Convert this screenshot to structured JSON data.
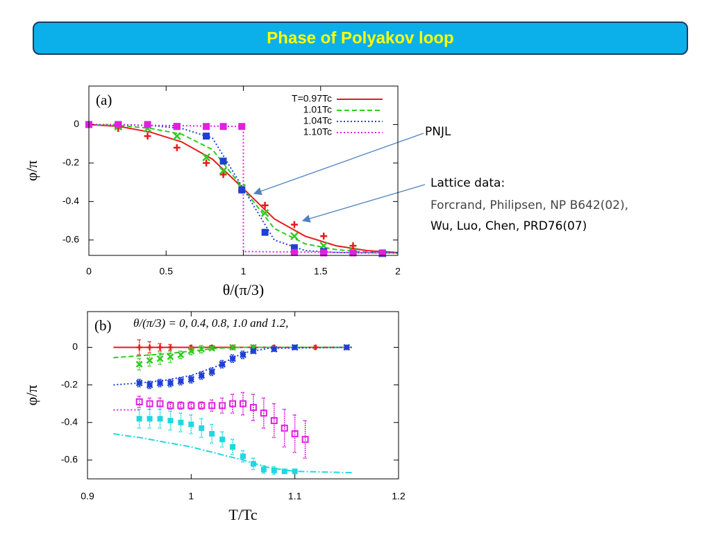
{
  "title": "Phase of Polyakov loop",
  "annotations": {
    "pnjl": "PNJL",
    "lattice": "Lattice data:",
    "ref1": "Forcrand, Philipsen, NP B642(02),",
    "ref2": "Wu, Luo, Chen, PRD76(07)"
  },
  "chart_data": [
    {
      "type": "line",
      "panel": "(a)",
      "x_label": "θ/(π/3)",
      "y_label": "φ/π",
      "xlim": [
        0,
        2
      ],
      "ylim": [
        -0.68,
        0.2
      ],
      "xticks": [
        0,
        0.5,
        1,
        1.5,
        2
      ],
      "yticks": [
        0,
        -0.2,
        -0.4,
        -0.6
      ],
      "legend": "upper right",
      "series": [
        {
          "name": "T=0.97Tc",
          "color": "#e8191c",
          "dash": "solid",
          "x": [
            0,
            0.2,
            0.4,
            0.6,
            0.8,
            1.0,
            1.2,
            1.4,
            1.6,
            1.8,
            2.0
          ],
          "values": [
            0,
            -0.01,
            -0.04,
            -0.09,
            -0.18,
            -0.333,
            -0.49,
            -0.58,
            -0.63,
            -0.655,
            -0.665
          ]
        },
        {
          "name": "1.01Tc",
          "color": "#2ecc1e",
          "dash": "dashed",
          "x": [
            0,
            0.2,
            0.4,
            0.6,
            0.8,
            1.0,
            1.2,
            1.4,
            1.6,
            1.8,
            2.0
          ],
          "values": [
            0,
            -0.005,
            -0.02,
            -0.05,
            -0.13,
            -0.333,
            -0.54,
            -0.62,
            -0.65,
            -0.663,
            -0.667
          ]
        },
        {
          "name": "1.04Tc",
          "color": "#1f3fd6",
          "dash": "dotted",
          "x": [
            0,
            0.2,
            0.4,
            0.6,
            0.8,
            1.0,
            1.2,
            1.4,
            1.6,
            1.8,
            2.0
          ],
          "values": [
            0,
            0,
            -0.005,
            -0.02,
            -0.07,
            -0.333,
            -0.6,
            -0.655,
            -0.665,
            -0.667,
            -0.667
          ]
        },
        {
          "name": "1.10Tc",
          "color": "#e020e0",
          "dash": "dotted",
          "x": [
            0,
            1,
            1,
            2
          ],
          "values": [
            0,
            -0.01,
            -0.66,
            -0.667
          ]
        },
        {
          "color": "#e8191c",
          "marker": "plus",
          "x": [
            0.19,
            0.38,
            0.57,
            0.76,
            0.87,
            0.99,
            1.14,
            1.33,
            1.52,
            1.71,
            1.9
          ],
          "values": [
            -0.02,
            -0.06,
            -0.12,
            -0.2,
            -0.26,
            -0.34,
            -0.42,
            -0.52,
            -0.58,
            -0.63,
            -0.67
          ]
        },
        {
          "color": "#2ecc1e",
          "marker": "x",
          "x": [
            0.19,
            0.38,
            0.57,
            0.76,
            0.87,
            0.99,
            1.14,
            1.33,
            1.52,
            1.71,
            1.9
          ],
          "values": [
            -0.01,
            -0.02,
            -0.06,
            -0.17,
            -0.24,
            -0.33,
            -0.46,
            -0.58,
            -0.63,
            -0.66,
            -0.67
          ]
        },
        {
          "color": "#1f3fd6",
          "marker": "square",
          "x": [
            0,
            0.19,
            0.38,
            0.57,
            0.76,
            0.87,
            0.99,
            1.14,
            1.33,
            1.52,
            1.9
          ],
          "values": [
            0,
            0,
            0,
            -0.01,
            -0.06,
            -0.19,
            -0.34,
            -0.56,
            -0.64,
            -0.66,
            -0.67
          ]
        },
        {
          "color": "#e020e0",
          "marker": "square",
          "x": [
            0,
            0.19,
            0.38,
            0.57,
            0.76,
            0.87,
            0.99,
            1.33,
            1.52,
            1.71,
            1.9
          ],
          "values": [
            0,
            0,
            0,
            -0.01,
            -0.01,
            -0.01,
            -0.01,
            -0.665,
            -0.667,
            -0.667,
            -0.667
          ]
        }
      ]
    },
    {
      "type": "line",
      "panel": "(b)",
      "annotation": "θ/(π/3) = 0, 0.4, 0.8, 1.0 and 1.2,",
      "x_label": "T/Tc",
      "y_label": "φ/π",
      "xlim": [
        0.9,
        1.2
      ],
      "ylim": [
        -0.7,
        0.19
      ],
      "xticks": [
        0.9,
        1,
        1.1,
        1.2
      ],
      "yticks": [
        0,
        -0.2,
        -0.4,
        -0.6
      ],
      "series": [
        {
          "color": "#e8191c",
          "dash": "solid",
          "x": [
            0.925,
            1.155
          ],
          "values": [
            0,
            0
          ]
        },
        {
          "color": "#2ecc1e",
          "dash": "dashed",
          "x": [
            0.925,
            0.95,
            0.975,
            1.0,
            1.025,
            1.05,
            1.155
          ],
          "values": [
            -0.055,
            -0.045,
            -0.035,
            -0.02,
            -0.005,
            0,
            0
          ]
        },
        {
          "color": "#1f3fd6",
          "dash": "dotted",
          "x": [
            0.925,
            0.95,
            0.975,
            1,
            1.025,
            1.05,
            1.075,
            1.155
          ],
          "values": [
            -0.2,
            -0.19,
            -0.175,
            -0.15,
            -0.1,
            -0.03,
            -0.005,
            0
          ]
        },
        {
          "color": "#e020e0",
          "dash": "dotted",
          "x": [
            0.925,
            0.95
          ],
          "values": [
            -0.333,
            -0.333
          ]
        },
        {
          "color": "#1fd8e0",
          "dash": "dashdot",
          "x": [
            0.925,
            0.95,
            1.0,
            1.05,
            1.075,
            1.1,
            1.155
          ],
          "values": [
            -0.46,
            -0.48,
            -0.53,
            -0.6,
            -0.64,
            -0.66,
            -0.667
          ]
        },
        {
          "color": "#e8191c",
          "marker": "plus",
          "x": [
            0.95,
            0.96,
            0.97,
            0.98,
            1.0,
            1.02,
            1.04,
            1.06,
            1.08,
            1.1,
            1.12,
            1.15
          ],
          "values": [
            0,
            0,
            0,
            0,
            0,
            0,
            0,
            0,
            0,
            0,
            0,
            0
          ],
          "errors": [
            0.04,
            0.03,
            0.02,
            0.015,
            0.01,
            0.01,
            0.01,
            0.01,
            0.01,
            0.01,
            0.01,
            0.01
          ]
        },
        {
          "color": "#2ecc1e",
          "marker": "x",
          "x": [
            0.95,
            0.96,
            0.97,
            0.98,
            0.99,
            1.0,
            1.01,
            1.02,
            1.04,
            1.06,
            1.1
          ],
          "values": [
            -0.09,
            -0.07,
            -0.06,
            -0.05,
            -0.04,
            -0.02,
            -0.01,
            -0.005,
            0,
            0,
            0
          ],
          "errors": [
            0.03,
            0.03,
            0.03,
            0.03,
            0.02,
            0.02,
            0.02,
            0.01,
            0.01,
            0.01,
            0.01
          ]
        },
        {
          "color": "#1f3fd6",
          "marker": "star",
          "x": [
            0.95,
            0.96,
            0.97,
            0.98,
            0.99,
            1.0,
            1.01,
            1.02,
            1.03,
            1.04,
            1.05,
            1.06,
            1.08,
            1.1,
            1.15
          ],
          "values": [
            -0.19,
            -0.2,
            -0.19,
            -0.19,
            -0.18,
            -0.17,
            -0.15,
            -0.13,
            -0.09,
            -0.06,
            -0.04,
            -0.02,
            -0.01,
            0,
            0
          ],
          "errors": [
            0.02,
            0.02,
            0.02,
            0.02,
            0.02,
            0.02,
            0.02,
            0.02,
            0.02,
            0.02,
            0.02,
            0.01,
            0.01,
            0.01,
            0.01
          ]
        },
        {
          "color": "#e020e0",
          "marker": "square-open",
          "x": [
            0.95,
            0.96,
            0.97,
            0.98,
            0.99,
            1.0,
            1.01,
            1.02,
            1.03,
            1.04,
            1.05,
            1.06,
            1.07,
            1.08,
            1.09,
            1.1,
            1.11
          ],
          "values": [
            -0.29,
            -0.3,
            -0.3,
            -0.31,
            -0.31,
            -0.31,
            -0.31,
            -0.31,
            -0.31,
            -0.3,
            -0.3,
            -0.32,
            -0.35,
            -0.39,
            -0.43,
            -0.46,
            -0.49
          ],
          "errors": [
            0.03,
            0.03,
            0.03,
            0.02,
            0.02,
            0.02,
            0.02,
            0.03,
            0.04,
            0.05,
            0.06,
            0.07,
            0.08,
            0.09,
            0.1,
            0.1,
            0.1
          ]
        },
        {
          "color": "#1fd8e0",
          "marker": "square",
          "x": [
            0.95,
            0.96,
            0.97,
            0.98,
            0.99,
            1.0,
            1.01,
            1.02,
            1.03,
            1.04,
            1.05,
            1.06,
            1.07,
            1.08,
            1.09,
            1.1
          ],
          "values": [
            -0.38,
            -0.38,
            -0.38,
            -0.39,
            -0.4,
            -0.41,
            -0.43,
            -0.46,
            -0.49,
            -0.53,
            -0.58,
            -0.62,
            -0.65,
            -0.655,
            -0.66,
            -0.66
          ],
          "errors": [
            0.05,
            0.05,
            0.05,
            0.05,
            0.05,
            0.05,
            0.05,
            0.05,
            0.04,
            0.04,
            0.03,
            0.03,
            0.02,
            0.02,
            0.01,
            0.01
          ]
        }
      ]
    }
  ]
}
